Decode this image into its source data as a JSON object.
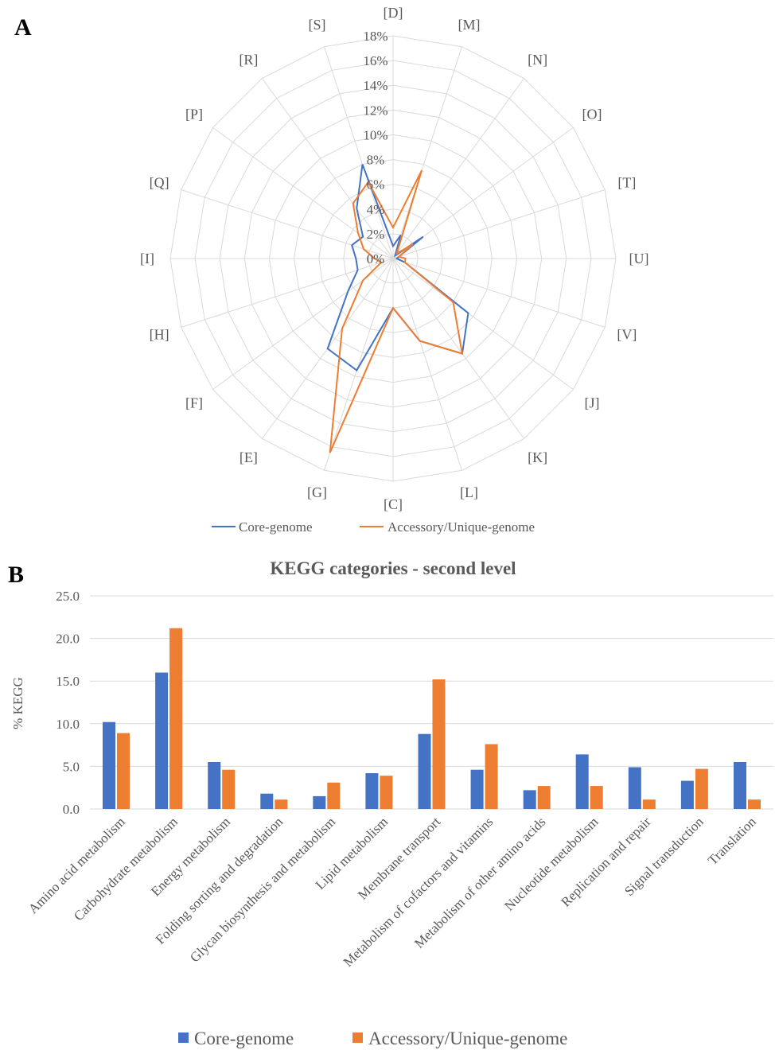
{
  "figure": {
    "panel_a_label": "A",
    "panel_b_label": "B"
  },
  "colors": {
    "core": "#4472C4",
    "accessory": "#ED7D31",
    "grid": "#D9D9D9",
    "text": "#595959"
  },
  "chart_data": [
    {
      "type": "radar",
      "categories": [
        "[D]",
        "[M]",
        "[N]",
        "[O]",
        "[T]",
        "[U]",
        "[V]",
        "[J]",
        "[K]",
        "[L]",
        "[C]",
        "[G]",
        "[E]",
        "[F]",
        "[H]",
        "[I]",
        "[Q]",
        "[P]",
        "[R]",
        "[S]"
      ],
      "rlim": [
        0,
        18
      ],
      "ticks": [
        "0%",
        "2%",
        "4%",
        "6%",
        "8%",
        "10%",
        "12%",
        "14%",
        "16%",
        "18%"
      ],
      "tick_values": [
        0,
        2,
        4,
        6,
        8,
        10,
        12,
        14,
        16,
        18
      ],
      "grid": true,
      "legend_position": "bottom",
      "series": [
        {
          "name": "Core-genome",
          "values": [
            1.0,
            2.0,
            0.3,
            3.0,
            0.5,
            0.3,
            1.0,
            7.5,
            9.5,
            7.0,
            4.0,
            9.5,
            9.0,
            4.5,
            3.0,
            3.0,
            3.5,
            3.0,
            5.0,
            8.0
          ]
        },
        {
          "name": "Accessory/Unique-genome",
          "values": [
            2.5,
            7.5,
            0.5,
            2.0,
            0.5,
            1.0,
            1.0,
            6.0,
            9.5,
            7.0,
            4.0,
            16.5,
            7.0,
            3.0,
            1.0,
            1.5,
            2.5,
            3.5,
            5.5,
            6.5
          ]
        }
      ]
    },
    {
      "type": "bar",
      "title": "KEGG categories - second level",
      "xlabel": "",
      "ylabel": "% KEGG",
      "ylim": [
        0,
        25
      ],
      "yticks": [
        "0.0",
        "5.0",
        "10.0",
        "15.0",
        "20.0",
        "25.0"
      ],
      "ytick_values": [
        0,
        5,
        10,
        15,
        20,
        25
      ],
      "grid": true,
      "legend_position": "bottom",
      "categories": [
        "Amino acid metabolism",
        "Carbohydrate metabolism",
        "Energy metabolism",
        "Folding sorting and degradation",
        "Glycan biosynthesis and metabolism",
        "Lipid metabolism",
        "Membrane transport",
        "Metabolism of cofactors and vitamins",
        "Metabolism of other amino acids",
        "Nucleotide metabolism",
        "Replication and repair",
        "Signal transduction",
        "Translation"
      ],
      "series": [
        {
          "name": "Core-genome",
          "values": [
            10.2,
            16.0,
            5.5,
            1.8,
            1.5,
            4.2,
            8.8,
            4.6,
            2.2,
            6.4,
            4.9,
            3.3,
            5.5
          ]
        },
        {
          "name": "Accessory/Unique-genome",
          "values": [
            8.9,
            21.2,
            4.6,
            1.1,
            3.1,
            3.9,
            15.2,
            7.6,
            2.7,
            2.7,
            1.1,
            4.7,
            1.1
          ]
        }
      ]
    }
  ]
}
